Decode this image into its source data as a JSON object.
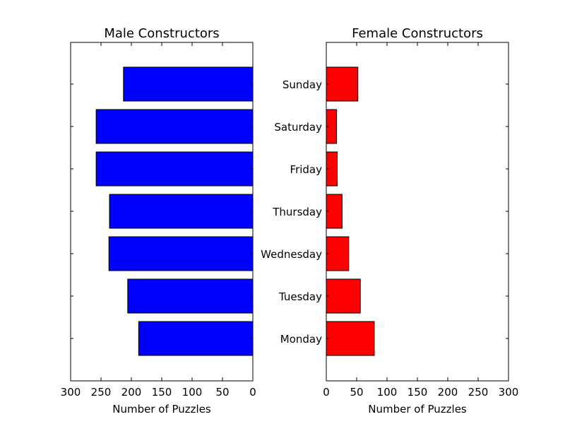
{
  "chart_data": [
    {
      "type": "bar",
      "orientation": "horizontal",
      "x_axis_direction": "reversed",
      "title": "Male Constructors",
      "xlabel": "Number of Puzzles",
      "xlim": [
        0,
        300
      ],
      "xticks": [
        300,
        250,
        200,
        150,
        100,
        50,
        0
      ],
      "categories": [
        "Monday",
        "Tuesday",
        "Wednesday",
        "Thursday",
        "Friday",
        "Saturday",
        "Sunday"
      ],
      "values": [
        188,
        206,
        237,
        236,
        258,
        258,
        213
      ],
      "color": "#0000ff"
    },
    {
      "type": "bar",
      "orientation": "horizontal",
      "title": "Female Constructors",
      "xlabel": "Number of Puzzles",
      "xlim": [
        0,
        300
      ],
      "xticks": [
        0,
        50,
        100,
        150,
        200,
        250,
        300
      ],
      "categories": [
        "Monday",
        "Tuesday",
        "Wednesday",
        "Thursday",
        "Friday",
        "Saturday",
        "Sunday"
      ],
      "values": [
        79,
        56,
        37,
        26,
        18,
        17,
        52
      ],
      "color": "#ff0000"
    }
  ]
}
